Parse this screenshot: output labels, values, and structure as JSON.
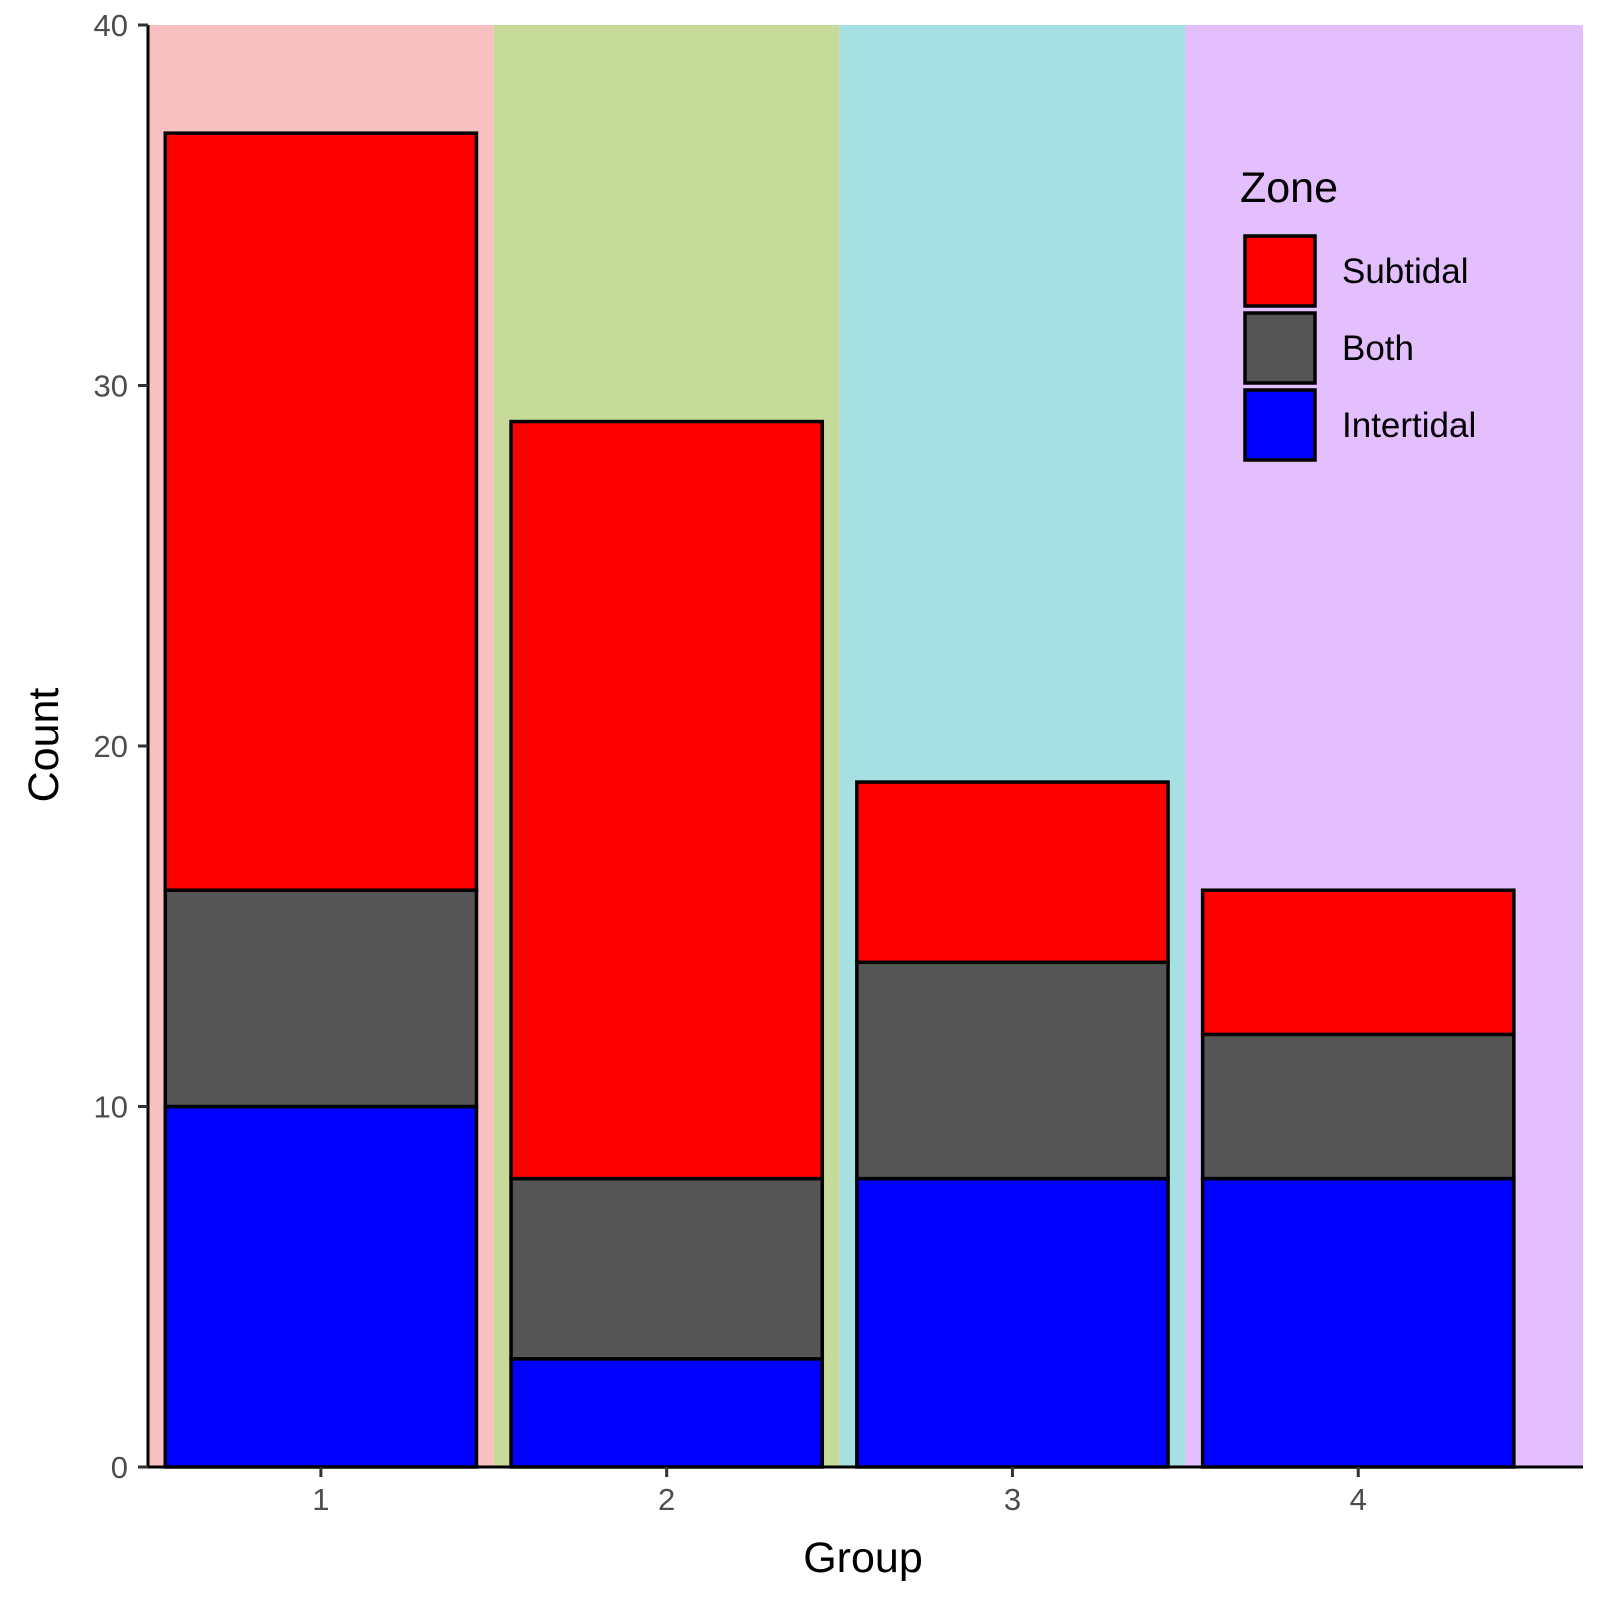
{
  "chart_data": {
    "type": "bar",
    "stacked": true,
    "categories": [
      "1",
      "2",
      "3",
      "4"
    ],
    "series": [
      {
        "name": "Intertidal",
        "values": [
          10,
          3,
          8,
          8
        ],
        "color": "#0000FF"
      },
      {
        "name": "Both",
        "values": [
          6,
          5,
          6,
          4
        ],
        "color": "#555555"
      },
      {
        "name": "Subtidal",
        "values": [
          21,
          21,
          5,
          4
        ],
        "color": "#FF0000"
      }
    ],
    "legend_order": [
      "Subtidal",
      "Both",
      "Intertidal"
    ],
    "group_background_colors": [
      "#F8C0C0",
      "#C6DA9A",
      "#A6E0E2",
      "#E3BFFD"
    ],
    "xlabel": "Group",
    "ylabel": "Count",
    "legend_title": "Zone",
    "ylim": [
      0,
      40
    ],
    "yticks": [
      0,
      10,
      20,
      30,
      40
    ],
    "grid": false,
    "legend_position": "top-right"
  }
}
